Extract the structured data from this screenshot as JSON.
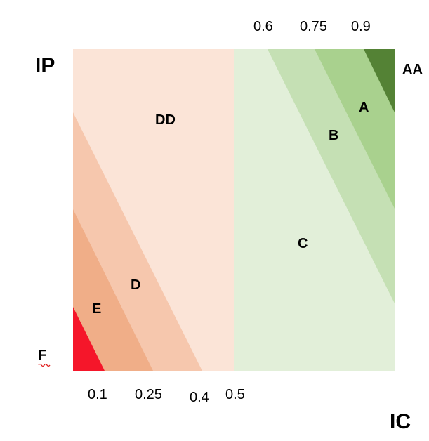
{
  "colors": {
    "zone_F": "#f5162a",
    "zone_E": "#f0ae88",
    "zone_D": "#f6c7ad",
    "zone_DD": "#fbe4d7",
    "zone_C": "#e2efd9",
    "zone_B": "#c5e0b4",
    "zone_A": "#a9d18e",
    "zone_AA": "#548235"
  },
  "axes": {
    "y_title": "IP",
    "x_title": "IC"
  },
  "zones": {
    "F": "F",
    "E": "E",
    "D": "D",
    "DD": "DD",
    "C": "C",
    "B": "B",
    "A": "A",
    "AA": "AA"
  },
  "ticks": {
    "bottom": [
      "0.1",
      "0.25",
      "0.4",
      "0.5"
    ],
    "top": [
      "0.6",
      "0.75",
      "0.9"
    ]
  }
}
